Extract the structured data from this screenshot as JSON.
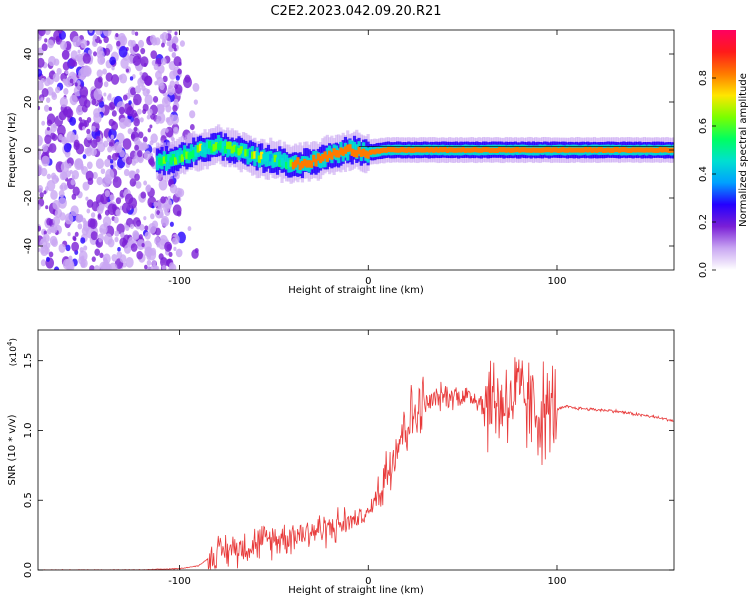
{
  "title": "C2E2.2023.042.09.20.R21",
  "chart_data": [
    {
      "type": "heatmap",
      "xlabel": "Height of straight line (km)",
      "ylabel": "Frequency (Hz)",
      "xlim": [
        -175,
        162
      ],
      "ylim": [
        -50,
        50
      ],
      "xticks": [
        -100,
        0,
        100
      ],
      "yticks": [
        -40,
        -20,
        0,
        20,
        40
      ],
      "grid": false,
      "ridge": {
        "x": [
          -110,
          -100,
          -90,
          -80,
          -70,
          -60,
          -50,
          -40,
          -30,
          -20,
          -10,
          0,
          10,
          20,
          40,
          60,
          80,
          100,
          130,
          162
        ],
        "y": [
          -5,
          -3,
          0,
          2,
          0,
          -3,
          -4,
          -6,
          -5,
          -2,
          0,
          -1,
          0,
          0,
          0,
          0,
          0,
          0,
          0,
          0
        ]
      },
      "colorbar": {
        "label": "Normalized spectral amplitude",
        "range": [
          0.0,
          1.0
        ],
        "ticks": [
          0.0,
          0.2,
          0.4,
          0.6,
          0.8
        ],
        "colors": [
          "#ffffff",
          "#c9a6f2",
          "#7a1fd6",
          "#2400ff",
          "#00a0ff",
          "#00e0d0",
          "#00ff60",
          "#7aff00",
          "#ffe600",
          "#ff7a00",
          "#ff1a1a",
          "#ff0060"
        ]
      }
    },
    {
      "type": "line",
      "xlabel": "Height of straight line (km)",
      "ylabel": "SNR (10 * v/v)",
      "yscale_note": "(x10",
      "yscale_exp": "4",
      "xlim": [
        -175,
        162
      ],
      "ylim": [
        0,
        1.72
      ],
      "xticks": [
        -100,
        0,
        100
      ],
      "yticks": [
        0.0,
        0.5,
        1.0,
        1.5
      ],
      "yticklabels": [
        "0.0",
        "0.5",
        "1.0",
        "1.5"
      ],
      "grid": false,
      "series": [
        {
          "color": "#e83a3a",
          "x": [
            -175,
            -150,
            -120,
            -100,
            -90,
            -85,
            -80,
            -70,
            -60,
            -50,
            -40,
            -30,
            -20,
            -10,
            0,
            5,
            10,
            15,
            20,
            25,
            30,
            35,
            40,
            50,
            60,
            70,
            80,
            90,
            100,
            105,
            110,
            120,
            130,
            140,
            150,
            162
          ],
          "y": [
            0.0,
            0.0,
            0.0,
            0.01,
            0.03,
            0.08,
            0.12,
            0.16,
            0.19,
            0.22,
            0.25,
            0.28,
            0.3,
            0.35,
            0.4,
            0.55,
            0.72,
            0.9,
            1.05,
            1.12,
            1.18,
            1.22,
            1.25,
            1.25,
            1.22,
            1.2,
            1.25,
            1.12,
            1.15,
            1.17,
            1.16,
            1.15,
            1.14,
            1.12,
            1.1,
            1.07
          ],
          "noise": [
            {
              "x": [
                -85,
                -10
              ],
              "amp": 0.16
            },
            {
              "x": [
                -10,
                5
              ],
              "amp": 0.08
            },
            {
              "x": [
                5,
                30
              ],
              "amp": 0.3
            },
            {
              "x": [
                30,
                60
              ],
              "amp": 0.12
            },
            {
              "x": [
                60,
                100
              ],
              "amp": 0.45
            },
            {
              "x": [
                100,
                162
              ],
              "amp": 0.015
            }
          ]
        }
      ]
    }
  ]
}
